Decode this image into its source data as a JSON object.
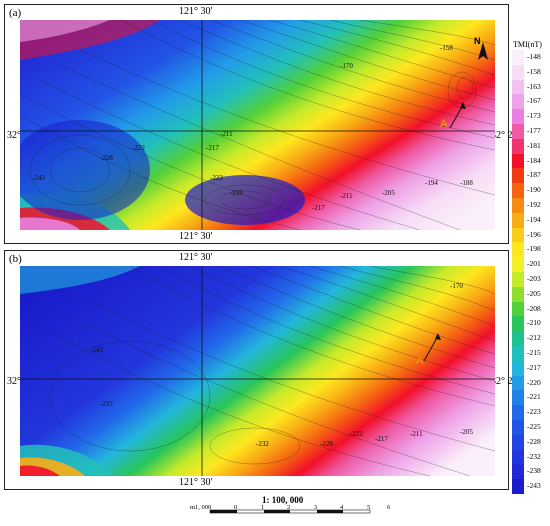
{
  "panels": [
    {
      "id": "a",
      "label": "(a)",
      "top_coord": "121° 30′",
      "bottom_coord": "121° 30′",
      "left_coord": "32° 22′",
      "right_coord": "32° 22′",
      "north": "N",
      "profile_label": "A",
      "contours": [
        "-158",
        "-170",
        "-211",
        "-217",
        "-222",
        "-228",
        "-238",
        "-243",
        "-205",
        "-200",
        "-194",
        "-188",
        "-220",
        "-222",
        "-232",
        "-226",
        "-217",
        "-211"
      ]
    },
    {
      "id": "b",
      "label": "(b)",
      "top_coord": "121° 30′",
      "bottom_coord": "121° 30′",
      "left_coord": "32° 22′",
      "right_coord": "32° 22′",
      "profile_label": "A",
      "contours": [
        "-170",
        "-243",
        "-237",
        "-232",
        "-228",
        "-222",
        "-217",
        "-211",
        "-205"
      ]
    }
  ],
  "legend": {
    "title": "TMI(nT)",
    "items": [
      {
        "label": "-148",
        "color": "#fbeffb"
      },
      {
        "label": "-158",
        "color": "#f7dcf5"
      },
      {
        "label": "-163",
        "color": "#f2c2ee"
      },
      {
        "label": "-167",
        "color": "#eea2e8"
      },
      {
        "label": "-173",
        "color": "#e97fe0"
      },
      {
        "label": "-177",
        "color": "#ee5aa4"
      },
      {
        "label": "-181",
        "color": "#f1346c"
      },
      {
        "label": "-184",
        "color": "#f2102a"
      },
      {
        "label": "-187",
        "color": "#f23a12"
      },
      {
        "label": "-190",
        "color": "#f56312"
      },
      {
        "label": "-192",
        "color": "#f78a12"
      },
      {
        "label": "-194",
        "color": "#f9ad14"
      },
      {
        "label": "-196",
        "color": "#fbcd18"
      },
      {
        "label": "-198",
        "color": "#fde820"
      },
      {
        "label": "-201",
        "color": "#f2f028"
      },
      {
        "label": "-203",
        "color": "#c5ea2a"
      },
      {
        "label": "-205",
        "color": "#8fdd2e"
      },
      {
        "label": "-208",
        "color": "#52d03a"
      },
      {
        "label": "-210",
        "color": "#28c55a"
      },
      {
        "label": "-212",
        "color": "#22c08c"
      },
      {
        "label": "-215",
        "color": "#22c0ba"
      },
      {
        "label": "-217",
        "color": "#22b6dc"
      },
      {
        "label": "-220",
        "color": "#229ce8"
      },
      {
        "label": "-221",
        "color": "#2282ea"
      },
      {
        "label": "-223",
        "color": "#2268ea"
      },
      {
        "label": "-225",
        "color": "#2254e6"
      },
      {
        "label": "-228",
        "color": "#2244e2"
      },
      {
        "label": "-232",
        "color": "#2236dc"
      },
      {
        "label": "-238",
        "color": "#2228d4"
      },
      {
        "label": "-243",
        "color": "#1a1ccc"
      }
    ]
  },
  "scale": {
    "ratio": "1: 100, 000",
    "labels": [
      "m1, 000",
      "0",
      "1",
      "2",
      "3",
      "4",
      "5",
      "6km"
    ]
  }
}
